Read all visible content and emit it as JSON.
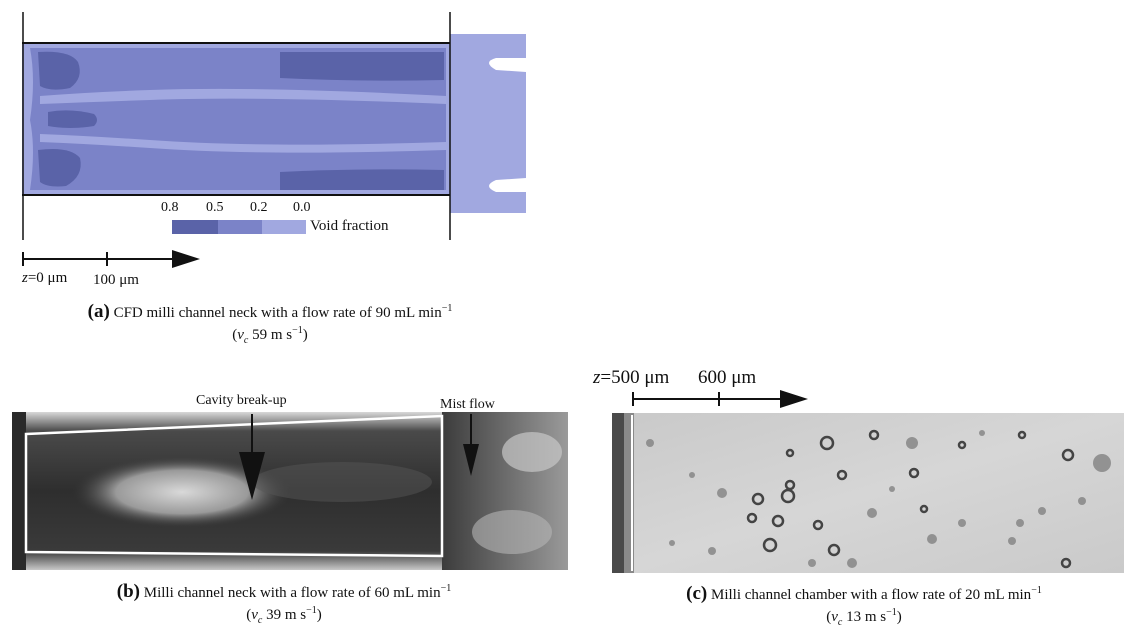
{
  "panel_a": {
    "legend": {
      "values": [
        "0.8",
        "0.5",
        "0.2",
        "0.0"
      ],
      "title": "Void fraction",
      "colors": [
        "#5a63a8",
        "#7b83c8",
        "#a1a8e0"
      ]
    },
    "scale": {
      "z_label": "z",
      "start": "=0 μm",
      "tick": "100 μm"
    },
    "caption": {
      "letter": "(a)",
      "text": "CFD milli channel neck with a flow rate of 90 mL min",
      "exp": "−1",
      "line2_pre": "(",
      "var": "v",
      "sub": "c",
      "line2_post": " 59 m s",
      "line2_exp": "−1",
      "line2_close": ")"
    }
  },
  "panel_b": {
    "annotations": {
      "cavity": "Cavity break-up",
      "mist": "Mist flow"
    },
    "caption": {
      "letter": "(b)",
      "text": "Milli channel neck with a flow rate of 60 mL min",
      "exp": "−1",
      "line2_pre": "(",
      "var": "v",
      "sub": "c",
      "line2_post": " 39 m s",
      "line2_exp": "−1",
      "line2_close": ")"
    }
  },
  "panel_c": {
    "scale": {
      "z_label": "z",
      "start": "=500 μm",
      "tick": "600 μm"
    },
    "caption": {
      "letter": "(c)",
      "text": "Milli channel chamber with a flow rate of 20 mL min",
      "exp": "−1",
      "line2_pre": "(",
      "var": "v",
      "sub": "c",
      "line2_post": " 13 m s",
      "line2_exp": "−1",
      "line2_close": ")"
    }
  }
}
